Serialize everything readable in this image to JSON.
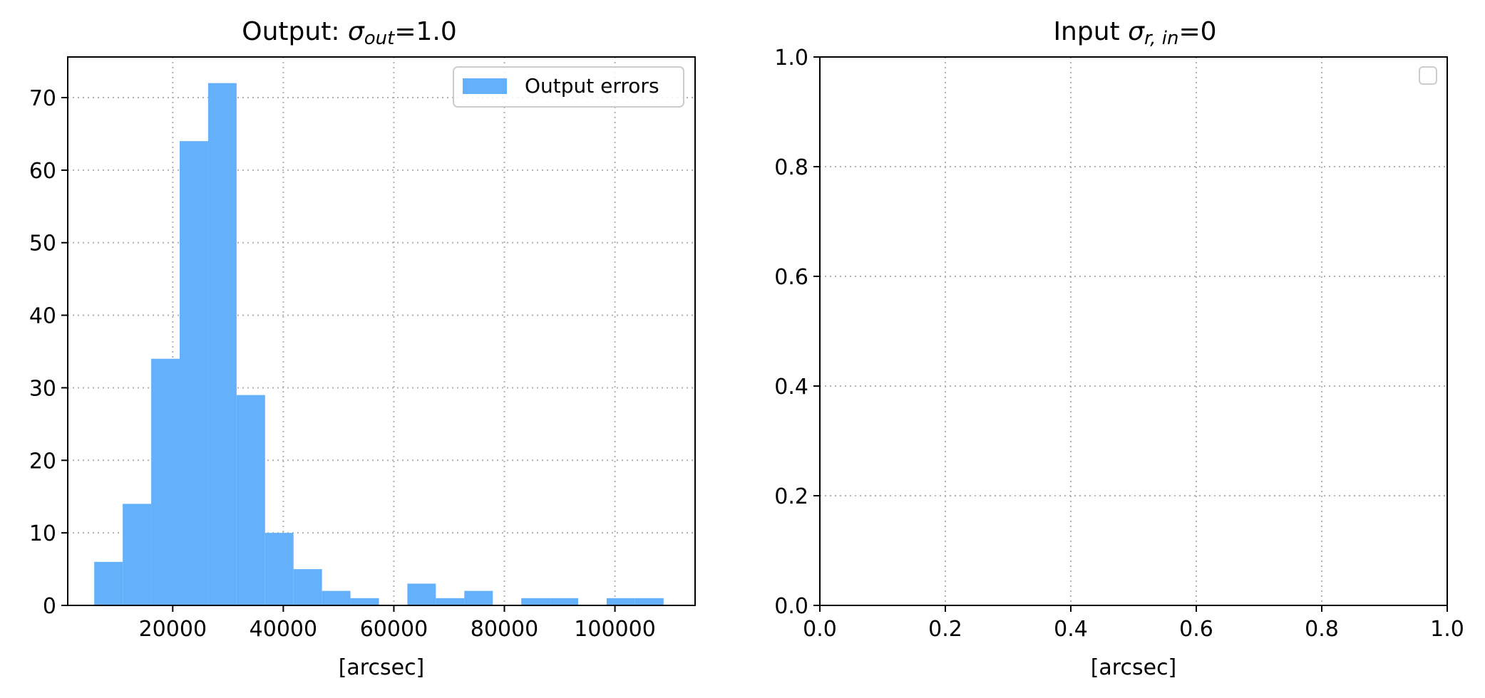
{
  "colors": {
    "bar": "#64b0fb",
    "axis": "#000000",
    "grid": "#b0b0b0"
  },
  "chart_data": [
    {
      "type": "bar",
      "title_main": "Output: ",
      "title_sigma": "σ",
      "title_sub": "out",
      "title_tail": "=1.0",
      "xlabel": "[arcsec]",
      "ylabel": "",
      "xlim": [
        1000,
        114500
      ],
      "ylim": [
        0,
        75.6
      ],
      "xticks": [
        20000,
        40000,
        60000,
        80000,
        100000
      ],
      "xtick_labels": [
        "20000",
        "40000",
        "60000",
        "80000",
        "100000"
      ],
      "yticks": [
        0,
        10,
        20,
        30,
        40,
        50,
        60,
        70
      ],
      "ytick_labels": [
        "0",
        "10",
        "20",
        "30",
        "40",
        "50",
        "60",
        "70"
      ],
      "bin_edges": [
        5800,
        10950,
        16100,
        21250,
        26400,
        31550,
        36700,
        41850,
        47000,
        52150,
        57300,
        62450,
        67600,
        72750,
        77900,
        83050,
        88200,
        93350,
        98500,
        103650,
        108800
      ],
      "values": [
        6,
        14,
        34,
        64,
        72,
        29,
        10,
        5,
        2,
        1,
        0,
        3,
        1,
        2,
        0,
        1,
        1,
        0,
        1,
        1
      ],
      "series": [
        {
          "name": "Output errors"
        }
      ],
      "grid": true,
      "legend_position": "upper right"
    },
    {
      "type": "bar",
      "title_main": "Input ",
      "title_sigma": "σ",
      "title_sub": "r, in",
      "title_tail": "=0",
      "xlabel": "[arcsec]",
      "ylabel": "",
      "xlim": [
        0,
        1
      ],
      "ylim": [
        0,
        1
      ],
      "xticks": [
        0,
        0.2,
        0.4,
        0.6,
        0.8,
        1.0
      ],
      "xtick_labels": [
        "0.0",
        "0.2",
        "0.4",
        "0.6",
        "0.8",
        "1.0"
      ],
      "yticks": [
        0,
        0.2,
        0.4,
        0.6,
        0.8,
        1.0
      ],
      "ytick_labels": [
        "0.0",
        "0.2",
        "0.4",
        "0.6",
        "0.8",
        "1.0"
      ],
      "values": [],
      "series": [],
      "grid": true,
      "legend_position": "upper right"
    }
  ]
}
